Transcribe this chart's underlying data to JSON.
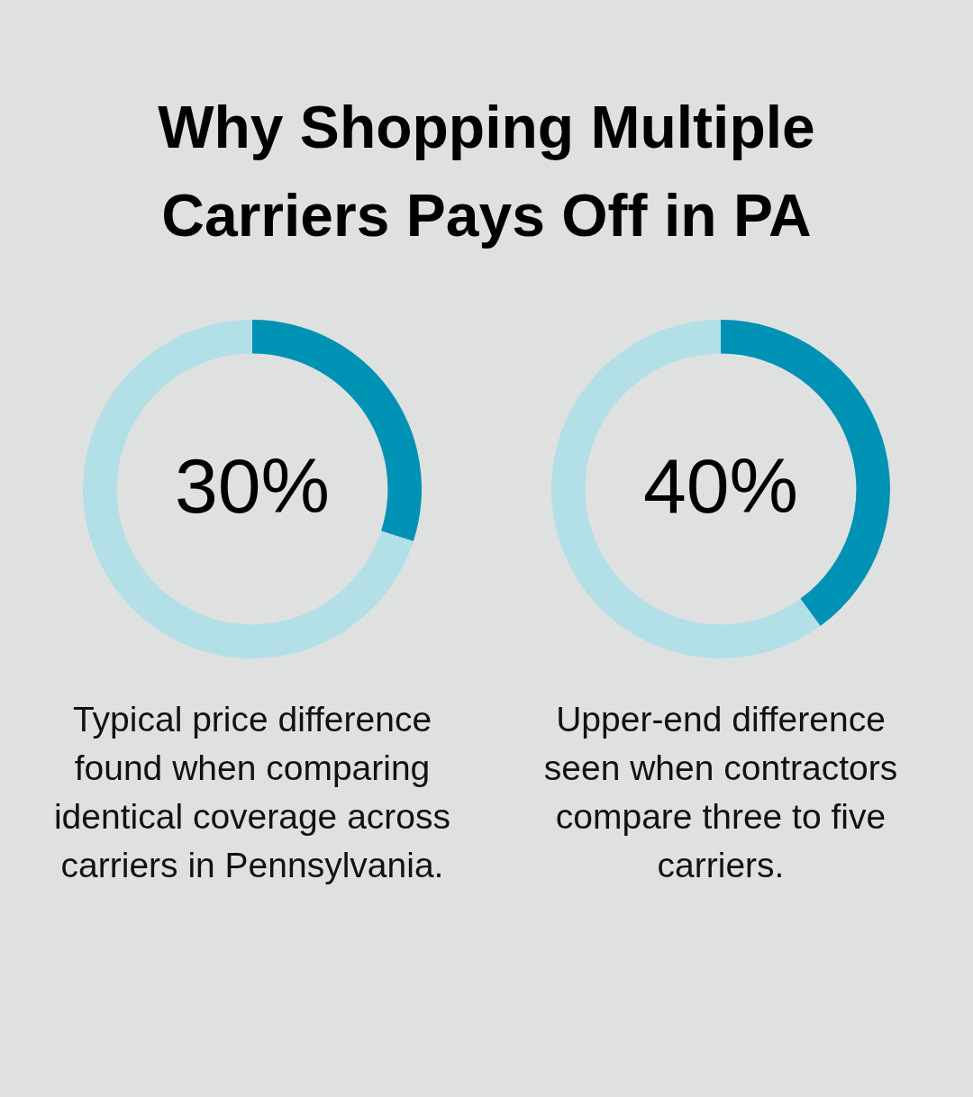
{
  "chart_data": [
    {
      "type": "donut",
      "title": "Why Shopping Multiple Carriers Pays Off in PA",
      "categories": [
        null,
        null
      ],
      "values": [
        30,
        70
      ],
      "colors": [
        "#0092b5",
        "#b3dfe7"
      ],
      "value_labels": [
        "30%",
        null
      ],
      "annotations": [
        "Typical price difference found when comparing identical coverage across carriers in Pennsylvania."
      ]
    },
    {
      "type": "donut",
      "categories": [
        null,
        null
      ],
      "values": [
        40,
        60
      ],
      "colors": [
        "#0092b5",
        "#b3dfe7"
      ],
      "value_labels": [
        "40%",
        null
      ],
      "annotations": [
        "Upper-end difference seen when contractors compare three to five carriers."
      ]
    }
  ]
}
